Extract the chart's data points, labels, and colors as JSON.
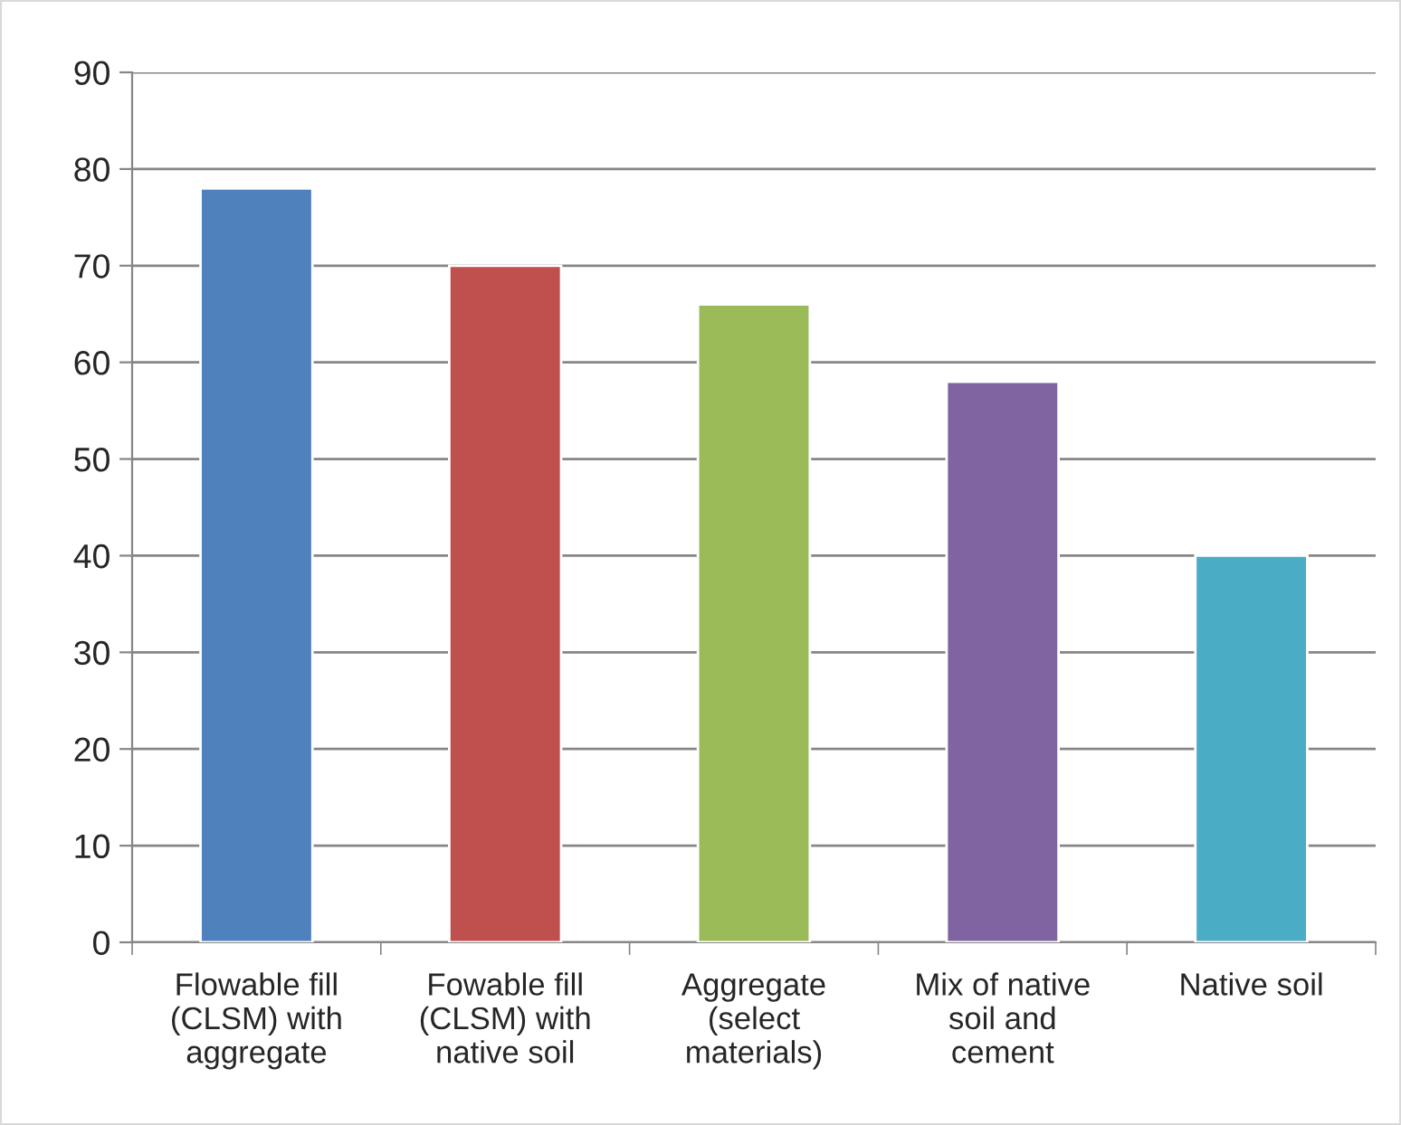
{
  "chart_data": {
    "type": "bar",
    "categories": [
      "Flowable fill\n(CLSM) with\naggregate",
      "Fowable fill\n(CLSM) with\nnative soil",
      "Aggregate\n(select\nmaterials)",
      "Mix of native\nsoil and\ncement",
      "Native soil"
    ],
    "values": [
      78,
      70,
      66,
      58,
      40
    ],
    "colors": [
      "#4f81bd",
      "#c0504d",
      "#9bbb59",
      "#8064a2",
      "#4bacc6"
    ],
    "ylim": [
      0,
      90
    ],
    "yticks": [
      0,
      10,
      20,
      30,
      40,
      50,
      60,
      70,
      80,
      90
    ],
    "grid": "y",
    "legend": false
  }
}
